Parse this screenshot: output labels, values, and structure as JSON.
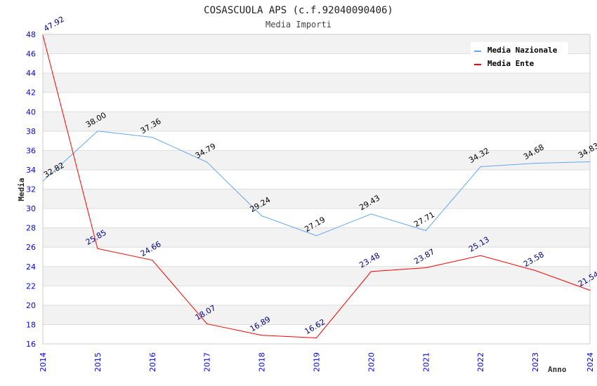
{
  "chart_data": {
    "type": "line",
    "title": "COSASCUOLA APS (c.f.92040090406)",
    "subtitle": "Media Importi",
    "xlabel": "Anno",
    "ylabel": "Media",
    "ylim": [
      16,
      48
    ],
    "yticks": [
      16,
      18,
      20,
      22,
      24,
      26,
      28,
      30,
      32,
      34,
      36,
      38,
      40,
      42,
      44,
      46,
      48
    ],
    "x": [
      "2014",
      "2015",
      "2016",
      "2017",
      "2018",
      "2019",
      "2020",
      "2021",
      "2022",
      "2023",
      "2024"
    ],
    "grid": true,
    "legend_position": "top-right",
    "series": [
      {
        "name": "Media Nazionale",
        "color": "#64a8f0",
        "label_color": "#000000",
        "values": [
          32.82,
          38.0,
          37.36,
          34.79,
          29.24,
          27.19,
          29.43,
          27.71,
          34.32,
          34.68,
          34.83
        ]
      },
      {
        "name": "Media Ente",
        "color": "#ff0000",
        "label_color": "#00008b",
        "values": [
          47.92,
          25.85,
          24.66,
          18.07,
          16.89,
          16.62,
          23.48,
          23.87,
          25.13,
          23.58,
          21.54
        ]
      }
    ]
  }
}
